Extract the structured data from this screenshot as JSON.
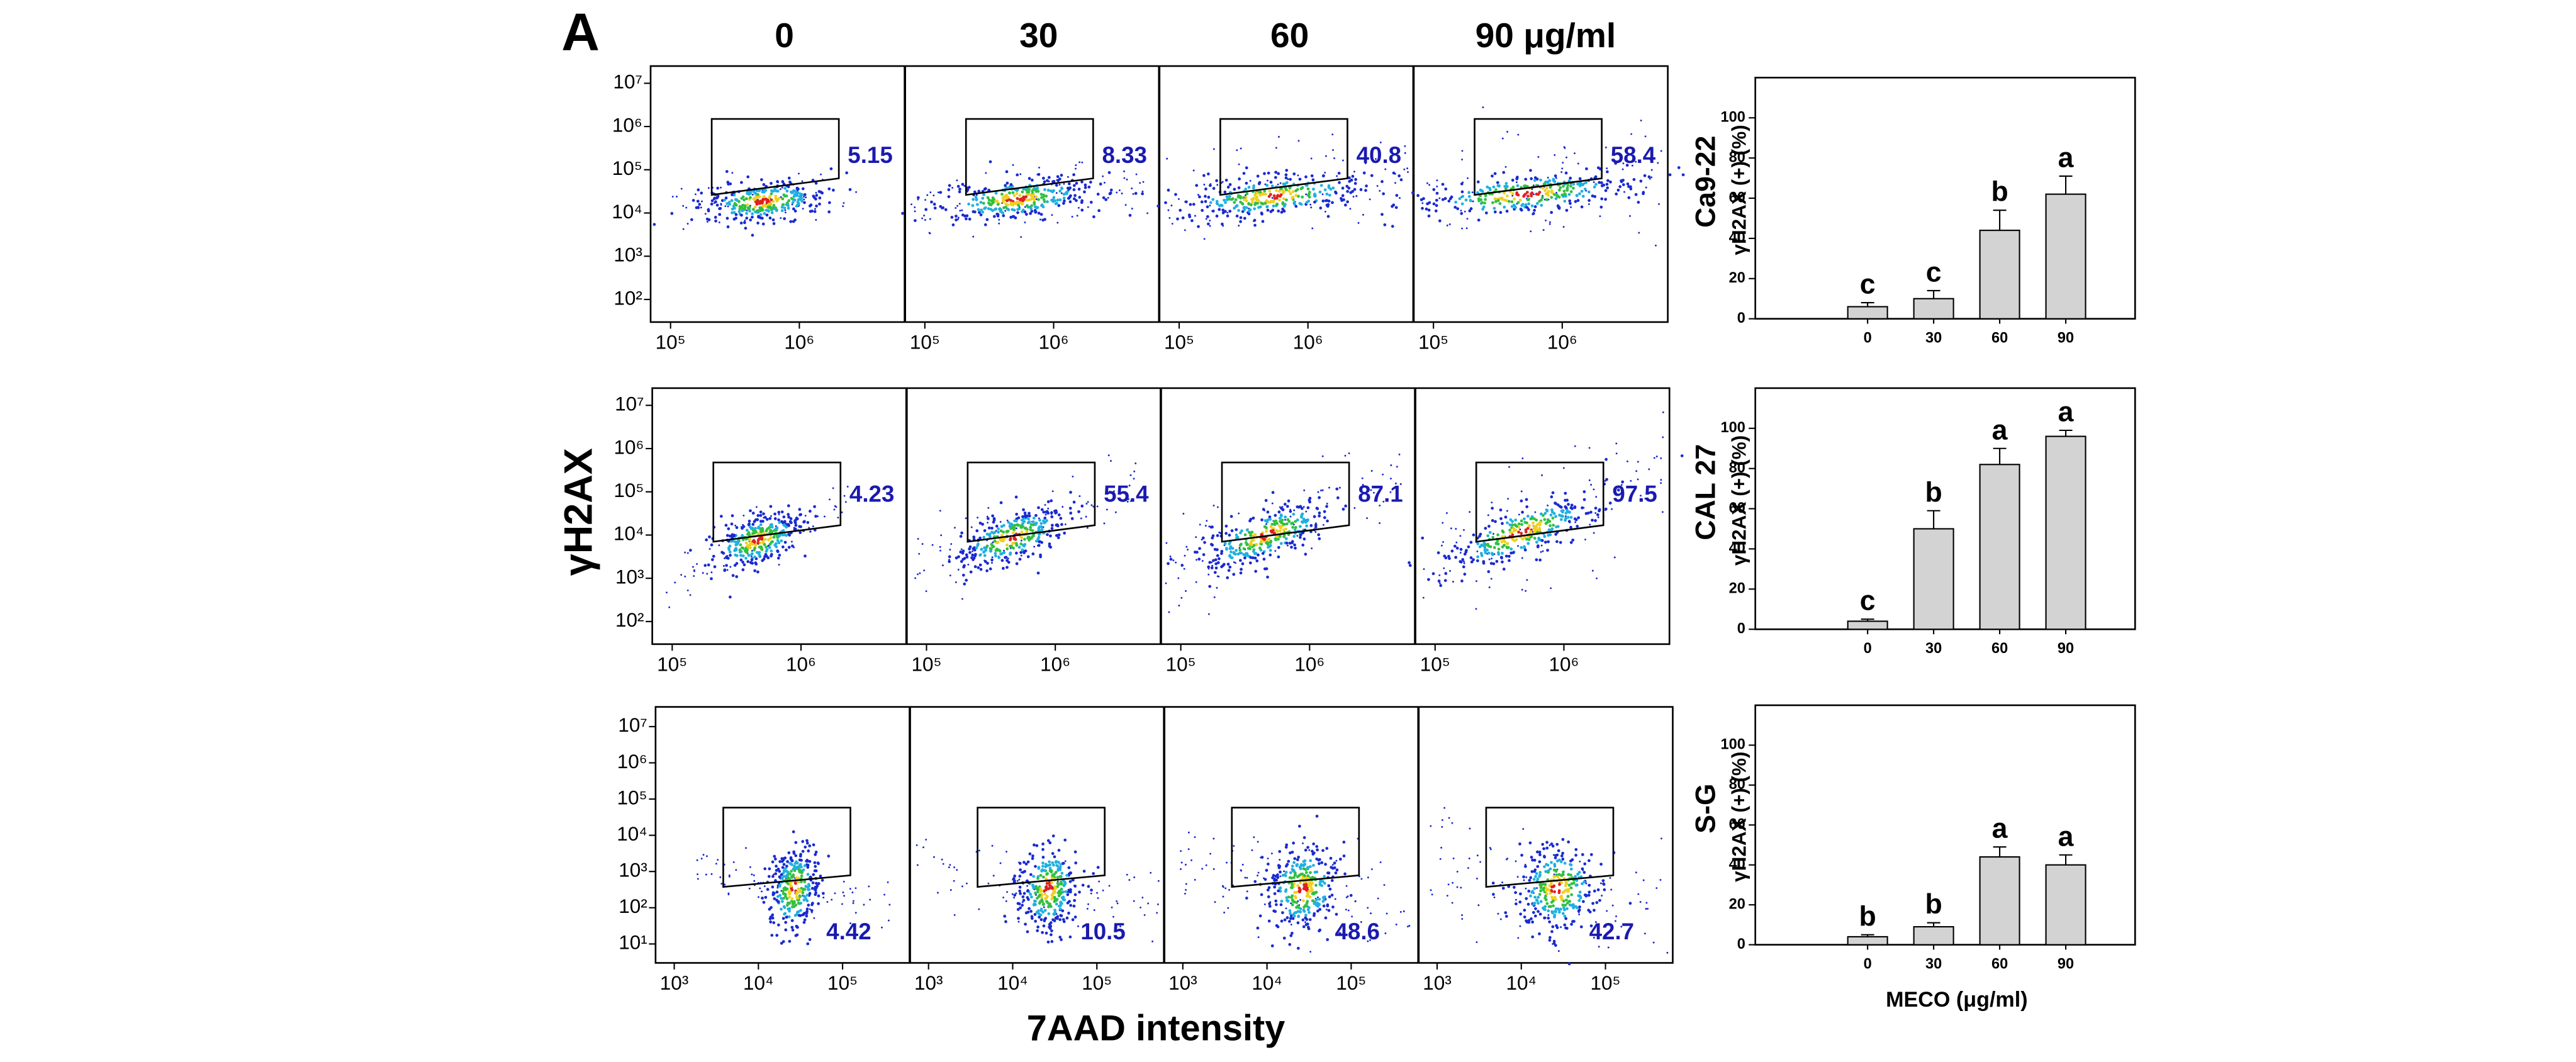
{
  "panel_label": "A",
  "column_headers": [
    "0",
    "30",
    "60",
    "90 μg/ml"
  ],
  "flow_y_label": "γH2AX",
  "flow_x_label": "7AAD intensity",
  "flow_rows": [
    {
      "ylim": [
        30,
        25000000
      ],
      "yticks": [
        {
          "value": 100,
          "label": "10²"
        },
        {
          "value": 1000,
          "label": "10³"
        },
        {
          "value": 10000,
          "label": "10⁴"
        },
        {
          "value": 100000,
          "label": "10⁵"
        },
        {
          "value": 1000000,
          "label": "10⁶"
        },
        {
          "value": 10000000,
          "label": "10⁷"
        }
      ],
      "xlim": [
        70000,
        6600000
      ],
      "xticks": [
        {
          "value": 100000,
          "label": "10⁵"
        },
        {
          "value": 1000000,
          "label": "10⁶"
        }
      ],
      "gate_percent": [
        5.15,
        8.33,
        40.8,
        58.4
      ]
    },
    {
      "ylim": [
        30,
        25000000
      ],
      "yticks": [
        {
          "value": 100,
          "label": "10²"
        },
        {
          "value": 1000,
          "label": "10³"
        },
        {
          "value": 10000,
          "label": "10⁴"
        },
        {
          "value": 100000,
          "label": "10⁵"
        },
        {
          "value": 1000000,
          "label": "10⁶"
        },
        {
          "value": 10000000,
          "label": "10⁷"
        }
      ],
      "xlim": [
        70000,
        6600000
      ],
      "xticks": [
        {
          "value": 100000,
          "label": "10⁵"
        },
        {
          "value": 1000000,
          "label": "10⁶"
        }
      ],
      "gate_percent": [
        4.23,
        55.4,
        87.1,
        97.5
      ]
    },
    {
      "ylim": [
        3,
        35000000
      ],
      "yticks": [
        {
          "value": 10,
          "label": "10¹"
        },
        {
          "value": 100,
          "label": "10²"
        },
        {
          "value": 1000,
          "label": "10³"
        },
        {
          "value": 10000,
          "label": "10⁴"
        },
        {
          "value": 100000,
          "label": "10⁵"
        },
        {
          "value": 1000000,
          "label": "10⁶"
        },
        {
          "value": 10000000,
          "label": "10⁷"
        }
      ],
      "xlim": [
        600,
        630000
      ],
      "xticks": [
        {
          "value": 1000,
          "label": "10³"
        },
        {
          "value": 10000,
          "label": "10⁴"
        },
        {
          "value": 100000,
          "label": "10⁵"
        }
      ],
      "gate_percent": [
        4.42,
        10.5,
        48.6,
        42.7
      ]
    }
  ],
  "chart_data": [
    {
      "type": "bar",
      "title": "Ca9-22",
      "ylabel": "γH2AX (+) (%)",
      "categories": [
        "0",
        "30",
        "60",
        "90"
      ],
      "values": [
        6,
        10,
        44,
        62
      ],
      "errors": [
        2,
        4,
        10,
        9
      ],
      "letters": [
        "c",
        "c",
        "b",
        "a"
      ],
      "color": "#d3d3d3",
      "ylim": [
        0,
        120
      ],
      "yticks": [
        0,
        20,
        40,
        60,
        80,
        100
      ]
    },
    {
      "type": "bar",
      "title": "CAL 27",
      "ylabel": "γH2AX (+) (%)",
      "categories": [
        "0",
        "30",
        "60",
        "90"
      ],
      "values": [
        4,
        50,
        82,
        96
      ],
      "errors": [
        1,
        9,
        8,
        3
      ],
      "letters": [
        "c",
        "b",
        "a",
        "a"
      ],
      "color": "#d3d3d3",
      "ylim": [
        0,
        120
      ],
      "yticks": [
        0,
        20,
        40,
        60,
        80,
        100
      ]
    },
    {
      "type": "bar",
      "title": "S-G",
      "ylabel": "γH2AX (+) (%)",
      "xlabel": "MECO (μg/ml)",
      "categories": [
        "0",
        "30",
        "60",
        "90"
      ],
      "values": [
        4,
        9,
        44,
        40
      ],
      "errors": [
        1,
        2,
        5,
        5
      ],
      "letters": [
        "b",
        "b",
        "a",
        "a"
      ],
      "color": "#d3d3d3",
      "ylim": [
        0,
        120
      ],
      "yticks": [
        0,
        20,
        40,
        60,
        80,
        100
      ]
    }
  ]
}
